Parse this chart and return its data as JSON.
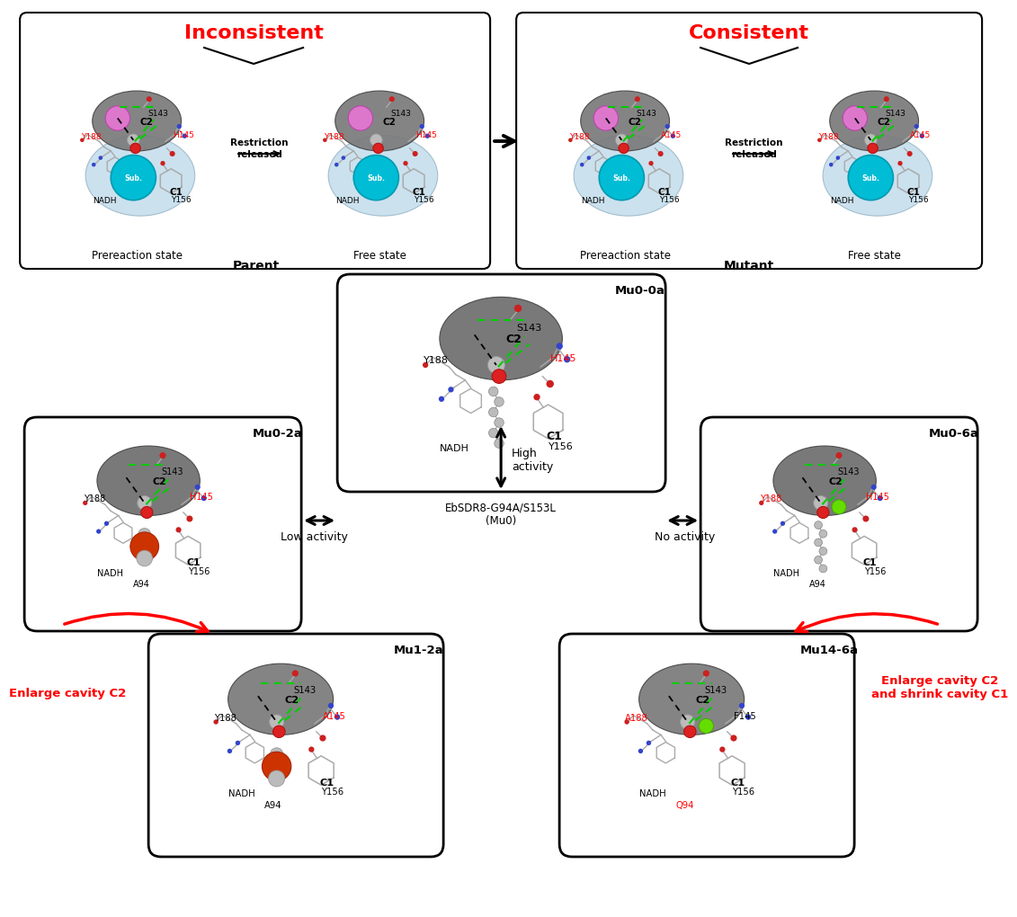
{
  "bg": "#ffffff",
  "top_left_title": "Inconsistent",
  "top_right_title": "Consistent",
  "parent_label": "Parent",
  "mutant_label": "Mutant",
  "prereaction": "Prereaction state",
  "free_state": "Free state",
  "mu00a": "Mu0-0a",
  "mu02a": "Mu0-2a",
  "mu06a": "Mu0-6a",
  "mu12a": "Mu1-2a",
  "mu146a": "Mu14-6a",
  "high_activity": "High\nactivity",
  "low_activity": "Low activity",
  "no_activity": "No activity",
  "mu0_line1": "EbSDR8-G94A/S153L",
  "mu0_line2": "(Mu0)",
  "enlarge_c2": "Enlarge cavity C2",
  "enlarge_c2_shrink_c1": "Enlarge cavity C2\nand shrink cavity C1"
}
